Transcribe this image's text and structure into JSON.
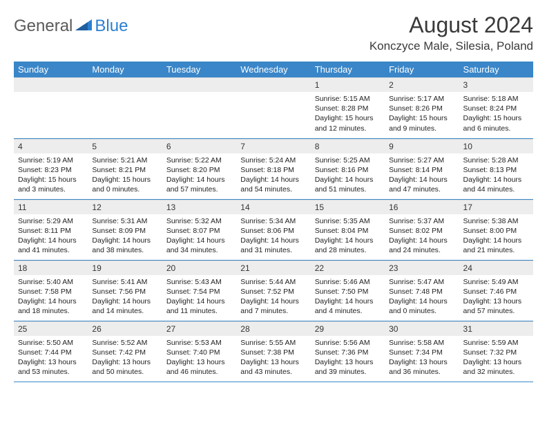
{
  "logo": {
    "text1": "General",
    "text2": "Blue"
  },
  "title": "August 2024",
  "subtitle": "Konczyce Male, Silesia, Poland",
  "colors": {
    "header_bg": "#3a86c8",
    "header_text": "#ffffff",
    "daynum_bg": "#ededed",
    "border": "#3a86c8",
    "logo_gray": "#5a5a5a",
    "logo_blue": "#2d7fd1"
  },
  "weekdays": [
    "Sunday",
    "Monday",
    "Tuesday",
    "Wednesday",
    "Thursday",
    "Friday",
    "Saturday"
  ],
  "weeks": [
    [
      {
        "num": "",
        "sunrise": "",
        "sunset": "",
        "daylight": ""
      },
      {
        "num": "",
        "sunrise": "",
        "sunset": "",
        "daylight": ""
      },
      {
        "num": "",
        "sunrise": "",
        "sunset": "",
        "daylight": ""
      },
      {
        "num": "",
        "sunrise": "",
        "sunset": "",
        "daylight": ""
      },
      {
        "num": "1",
        "sunrise": "Sunrise: 5:15 AM",
        "sunset": "Sunset: 8:28 PM",
        "daylight": "Daylight: 15 hours and 12 minutes."
      },
      {
        "num": "2",
        "sunrise": "Sunrise: 5:17 AM",
        "sunset": "Sunset: 8:26 PM",
        "daylight": "Daylight: 15 hours and 9 minutes."
      },
      {
        "num": "3",
        "sunrise": "Sunrise: 5:18 AM",
        "sunset": "Sunset: 8:24 PM",
        "daylight": "Daylight: 15 hours and 6 minutes."
      }
    ],
    [
      {
        "num": "4",
        "sunrise": "Sunrise: 5:19 AM",
        "sunset": "Sunset: 8:23 PM",
        "daylight": "Daylight: 15 hours and 3 minutes."
      },
      {
        "num": "5",
        "sunrise": "Sunrise: 5:21 AM",
        "sunset": "Sunset: 8:21 PM",
        "daylight": "Daylight: 15 hours and 0 minutes."
      },
      {
        "num": "6",
        "sunrise": "Sunrise: 5:22 AM",
        "sunset": "Sunset: 8:20 PM",
        "daylight": "Daylight: 14 hours and 57 minutes."
      },
      {
        "num": "7",
        "sunrise": "Sunrise: 5:24 AM",
        "sunset": "Sunset: 8:18 PM",
        "daylight": "Daylight: 14 hours and 54 minutes."
      },
      {
        "num": "8",
        "sunrise": "Sunrise: 5:25 AM",
        "sunset": "Sunset: 8:16 PM",
        "daylight": "Daylight: 14 hours and 51 minutes."
      },
      {
        "num": "9",
        "sunrise": "Sunrise: 5:27 AM",
        "sunset": "Sunset: 8:14 PM",
        "daylight": "Daylight: 14 hours and 47 minutes."
      },
      {
        "num": "10",
        "sunrise": "Sunrise: 5:28 AM",
        "sunset": "Sunset: 8:13 PM",
        "daylight": "Daylight: 14 hours and 44 minutes."
      }
    ],
    [
      {
        "num": "11",
        "sunrise": "Sunrise: 5:29 AM",
        "sunset": "Sunset: 8:11 PM",
        "daylight": "Daylight: 14 hours and 41 minutes."
      },
      {
        "num": "12",
        "sunrise": "Sunrise: 5:31 AM",
        "sunset": "Sunset: 8:09 PM",
        "daylight": "Daylight: 14 hours and 38 minutes."
      },
      {
        "num": "13",
        "sunrise": "Sunrise: 5:32 AM",
        "sunset": "Sunset: 8:07 PM",
        "daylight": "Daylight: 14 hours and 34 minutes."
      },
      {
        "num": "14",
        "sunrise": "Sunrise: 5:34 AM",
        "sunset": "Sunset: 8:06 PM",
        "daylight": "Daylight: 14 hours and 31 minutes."
      },
      {
        "num": "15",
        "sunrise": "Sunrise: 5:35 AM",
        "sunset": "Sunset: 8:04 PM",
        "daylight": "Daylight: 14 hours and 28 minutes."
      },
      {
        "num": "16",
        "sunrise": "Sunrise: 5:37 AM",
        "sunset": "Sunset: 8:02 PM",
        "daylight": "Daylight: 14 hours and 24 minutes."
      },
      {
        "num": "17",
        "sunrise": "Sunrise: 5:38 AM",
        "sunset": "Sunset: 8:00 PM",
        "daylight": "Daylight: 14 hours and 21 minutes."
      }
    ],
    [
      {
        "num": "18",
        "sunrise": "Sunrise: 5:40 AM",
        "sunset": "Sunset: 7:58 PM",
        "daylight": "Daylight: 14 hours and 18 minutes."
      },
      {
        "num": "19",
        "sunrise": "Sunrise: 5:41 AM",
        "sunset": "Sunset: 7:56 PM",
        "daylight": "Daylight: 14 hours and 14 minutes."
      },
      {
        "num": "20",
        "sunrise": "Sunrise: 5:43 AM",
        "sunset": "Sunset: 7:54 PM",
        "daylight": "Daylight: 14 hours and 11 minutes."
      },
      {
        "num": "21",
        "sunrise": "Sunrise: 5:44 AM",
        "sunset": "Sunset: 7:52 PM",
        "daylight": "Daylight: 14 hours and 7 minutes."
      },
      {
        "num": "22",
        "sunrise": "Sunrise: 5:46 AM",
        "sunset": "Sunset: 7:50 PM",
        "daylight": "Daylight: 14 hours and 4 minutes."
      },
      {
        "num": "23",
        "sunrise": "Sunrise: 5:47 AM",
        "sunset": "Sunset: 7:48 PM",
        "daylight": "Daylight: 14 hours and 0 minutes."
      },
      {
        "num": "24",
        "sunrise": "Sunrise: 5:49 AM",
        "sunset": "Sunset: 7:46 PM",
        "daylight": "Daylight: 13 hours and 57 minutes."
      }
    ],
    [
      {
        "num": "25",
        "sunrise": "Sunrise: 5:50 AM",
        "sunset": "Sunset: 7:44 PM",
        "daylight": "Daylight: 13 hours and 53 minutes."
      },
      {
        "num": "26",
        "sunrise": "Sunrise: 5:52 AM",
        "sunset": "Sunset: 7:42 PM",
        "daylight": "Daylight: 13 hours and 50 minutes."
      },
      {
        "num": "27",
        "sunrise": "Sunrise: 5:53 AM",
        "sunset": "Sunset: 7:40 PM",
        "daylight": "Daylight: 13 hours and 46 minutes."
      },
      {
        "num": "28",
        "sunrise": "Sunrise: 5:55 AM",
        "sunset": "Sunset: 7:38 PM",
        "daylight": "Daylight: 13 hours and 43 minutes."
      },
      {
        "num": "29",
        "sunrise": "Sunrise: 5:56 AM",
        "sunset": "Sunset: 7:36 PM",
        "daylight": "Daylight: 13 hours and 39 minutes."
      },
      {
        "num": "30",
        "sunrise": "Sunrise: 5:58 AM",
        "sunset": "Sunset: 7:34 PM",
        "daylight": "Daylight: 13 hours and 36 minutes."
      },
      {
        "num": "31",
        "sunrise": "Sunrise: 5:59 AM",
        "sunset": "Sunset: 7:32 PM",
        "daylight": "Daylight: 13 hours and 32 minutes."
      }
    ]
  ]
}
